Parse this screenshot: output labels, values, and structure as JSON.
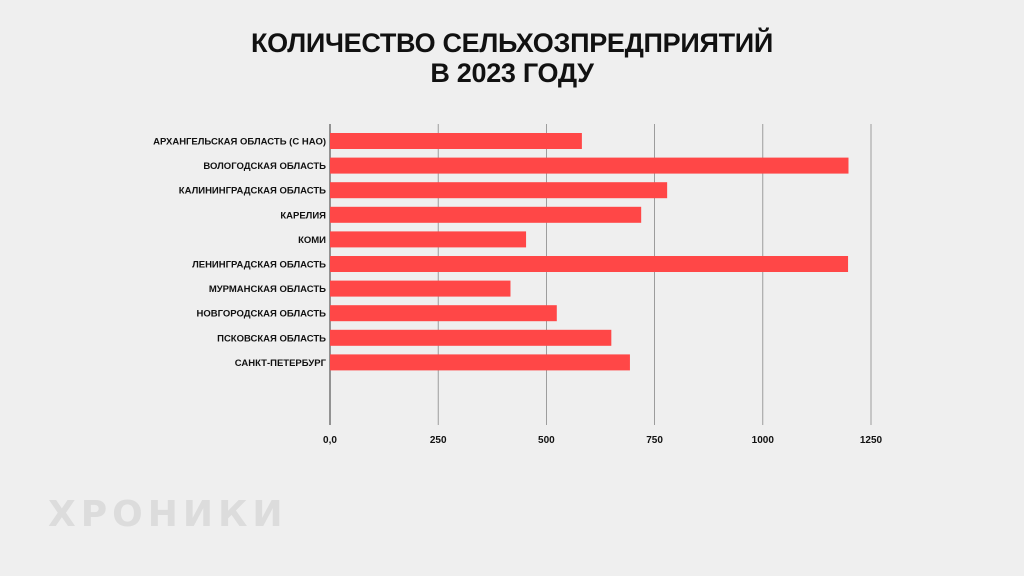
{
  "chart_data": {
    "type": "bar",
    "orientation": "horizontal",
    "title_lines": [
      "КОЛИЧЕСТВО СЕЛЬХОЗПРЕДПРИЯТИЙ",
      "В 2023 ГОДУ"
    ],
    "categories": [
      "АРХАНГЕЛЬСКАЯ ОБЛАСТЬ (С НАО)",
      "ВОЛОГОДСКАЯ ОБЛАСТЬ",
      "КАЛИНИНГРАДСКАЯ ОБЛАСТЬ",
      "КАРЕЛИЯ",
      "КОМИ",
      "ЛЕНИНГРАДСКАЯ ОБЛАСТЬ",
      "МУРМАНСКАЯ ОБЛАСТЬ",
      "НОВГОРОДСКАЯ ОБЛАСТЬ",
      "ПСКОВСКАЯ ОБЛАСТЬ",
      "САНКТ-ПЕТЕРБУРГ"
    ],
    "values": [
      582,
      1198,
      779,
      719,
      453,
      1197,
      417,
      524,
      650,
      693
    ],
    "xlim": [
      0,
      1250
    ],
    "xticks": [
      0,
      250,
      500,
      750,
      1000,
      1250
    ],
    "xtick_labels": [
      "0,0",
      "250",
      "500",
      "750",
      "1000",
      "1250"
    ],
    "grid": "vertical",
    "legend": "none",
    "bar_color": "#ff4747"
  },
  "watermark": "ХРОНИКИ",
  "colors": {
    "background": "#efefef",
    "bar": "#ff4747",
    "text": "#111111",
    "grid": "#888888",
    "watermark": "#dcdcdc"
  }
}
